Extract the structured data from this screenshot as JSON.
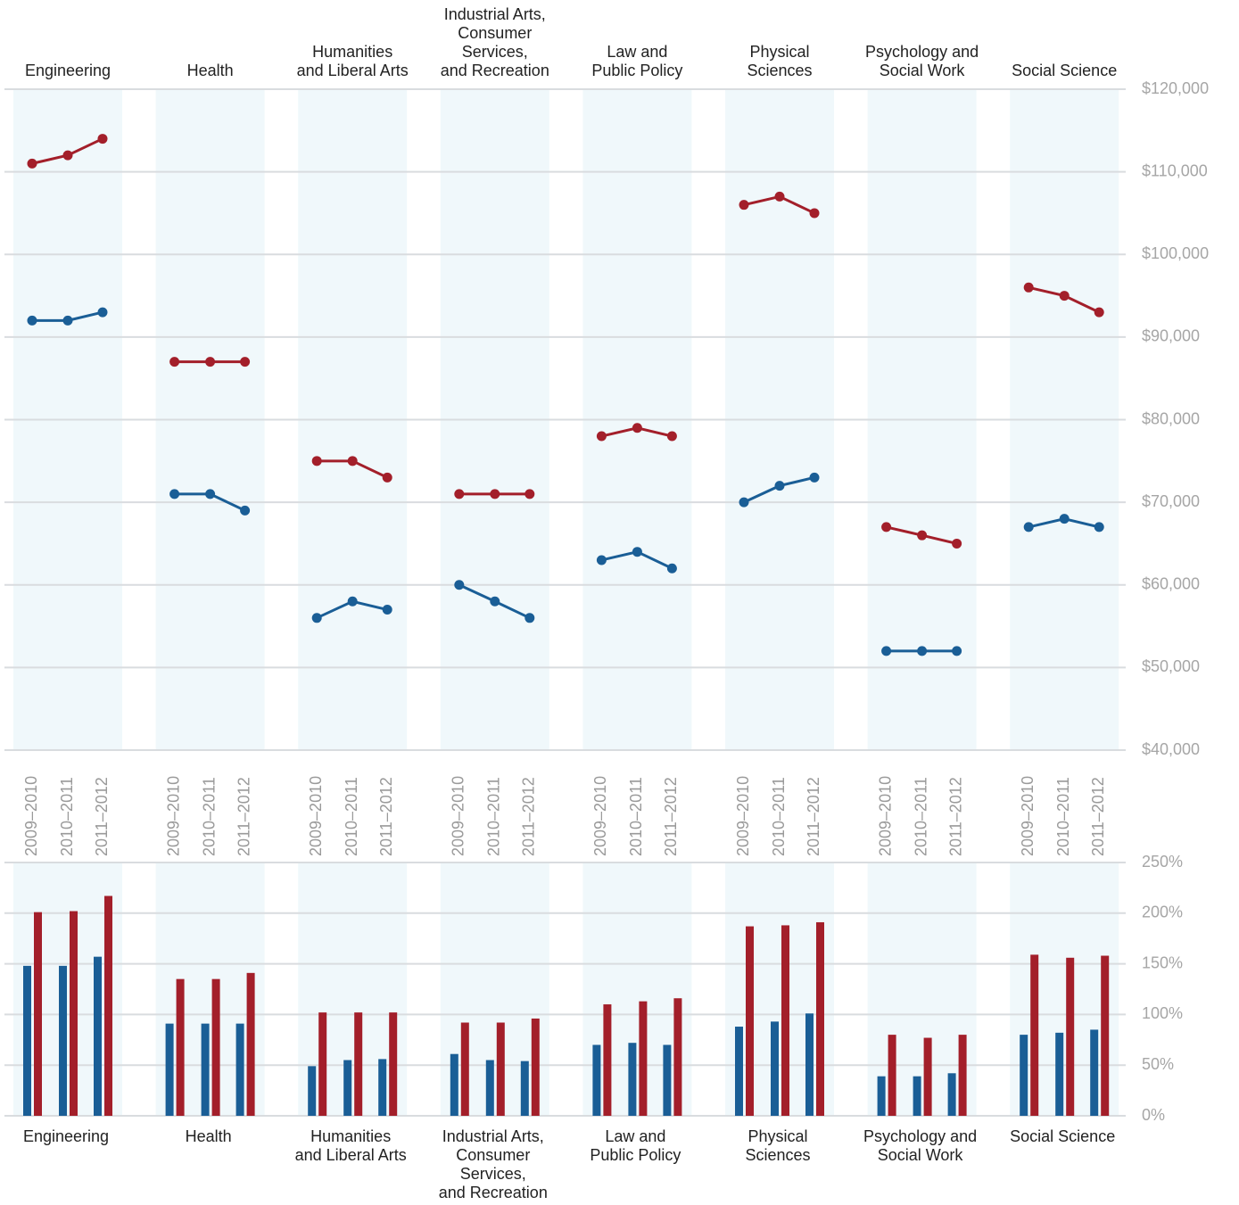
{
  "chart_data": [
    {
      "type": "line",
      "x": [
        "2009–2010",
        "2010–2011",
        "2011–2012"
      ],
      "ylim": [
        40000,
        120000
      ],
      "yticks": [
        {
          "value": 40000,
          "label": "$40,000"
        },
        {
          "value": 50000,
          "label": "$50,000"
        },
        {
          "value": 60000,
          "label": "$60,000"
        },
        {
          "value": 70000,
          "label": "$70,000"
        },
        {
          "value": 80000,
          "label": "$80,000"
        },
        {
          "value": 90000,
          "label": "$90,000"
        },
        {
          "value": 100000,
          "label": "$100,000"
        },
        {
          "value": 110000,
          "label": "$110,000"
        },
        {
          "value": 120000,
          "label": "$120,000"
        }
      ],
      "grid": true,
      "panels": [
        {
          "title": "Engineering",
          "series": [
            {
              "color": "#a31f2a",
              "values": [
                111000,
                112000,
                114000
              ]
            },
            {
              "color": "#1a5e96",
              "values": [
                92000,
                92000,
                93000
              ]
            }
          ]
        },
        {
          "title": "Health",
          "series": [
            {
              "color": "#a31f2a",
              "values": [
                87000,
                87000,
                87000
              ]
            },
            {
              "color": "#1a5e96",
              "values": [
                71000,
                71000,
                69000
              ]
            }
          ]
        },
        {
          "title": "Humanities\nand Liberal Arts",
          "series": [
            {
              "color": "#a31f2a",
              "values": [
                75000,
                75000,
                73000
              ]
            },
            {
              "color": "#1a5e96",
              "values": [
                56000,
                58000,
                57000
              ]
            }
          ]
        },
        {
          "title": "Industrial Arts,\nConsumer\nServices,\nand Recreation",
          "series": [
            {
              "color": "#a31f2a",
              "values": [
                71000,
                71000,
                71000
              ]
            },
            {
              "color": "#1a5e96",
              "values": [
                60000,
                58000,
                56000
              ]
            }
          ]
        },
        {
          "title": "Law and\nPublic Policy",
          "series": [
            {
              "color": "#a31f2a",
              "values": [
                78000,
                79000,
                78000
              ]
            },
            {
              "color": "#1a5e96",
              "values": [
                63000,
                64000,
                62000
              ]
            }
          ]
        },
        {
          "title": "Physical\nSciences",
          "series": [
            {
              "color": "#a31f2a",
              "values": [
                106000,
                107000,
                105000
              ]
            },
            {
              "color": "#1a5e96",
              "values": [
                70000,
                72000,
                73000
              ]
            }
          ]
        },
        {
          "title": "Psychology and\nSocial Work",
          "series": [
            {
              "color": "#a31f2a",
              "values": [
                67000,
                66000,
                65000
              ]
            },
            {
              "color": "#1a5e96",
              "values": [
                52000,
                52000,
                52000
              ]
            }
          ]
        },
        {
          "title": "Social Science",
          "series": [
            {
              "color": "#a31f2a",
              "values": [
                96000,
                95000,
                93000
              ]
            },
            {
              "color": "#1a5e96",
              "values": [
                67000,
                68000,
                67000
              ]
            }
          ]
        }
      ]
    },
    {
      "type": "bar",
      "ylim": [
        0,
        250
      ],
      "yticks": [
        {
          "value": 0,
          "label": "0%"
        },
        {
          "value": 50,
          "label": "50%"
        },
        {
          "value": 100,
          "label": "100%"
        },
        {
          "value": 150,
          "label": "150%"
        },
        {
          "value": 200,
          "label": "200%"
        },
        {
          "value": 250,
          "label": "250%"
        }
      ],
      "grid": true,
      "panels": [
        {
          "title": "Engineering",
          "series": [
            {
              "color": "#1a5e96",
              "values": [
                148,
                148,
                157
              ]
            },
            {
              "color": "#a31f2a",
              "values": [
                201,
                202,
                217
              ]
            }
          ]
        },
        {
          "title": "Health",
          "series": [
            {
              "color": "#1a5e96",
              "values": [
                91,
                91,
                91
              ]
            },
            {
              "color": "#a31f2a",
              "values": [
                135,
                135,
                141
              ]
            }
          ]
        },
        {
          "title": "Humanities\nand Liberal Arts",
          "series": [
            {
              "color": "#1a5e96",
              "values": [
                49,
                55,
                56
              ]
            },
            {
              "color": "#a31f2a",
              "values": [
                102,
                102,
                102
              ]
            }
          ]
        },
        {
          "title": "Industrial Arts,\nConsumer\nServices,\nand Recreation",
          "series": [
            {
              "color": "#1a5e96",
              "values": [
                61,
                55,
                54
              ]
            },
            {
              "color": "#a31f2a",
              "values": [
                92,
                92,
                96
              ]
            }
          ]
        },
        {
          "title": "Law and\nPublic Policy",
          "series": [
            {
              "color": "#1a5e96",
              "values": [
                70,
                72,
                70
              ]
            },
            {
              "color": "#a31f2a",
              "values": [
                110,
                113,
                116
              ]
            }
          ]
        },
        {
          "title": "Physical\nSciences",
          "series": [
            {
              "color": "#1a5e96",
              "values": [
                88,
                93,
                101
              ]
            },
            {
              "color": "#a31f2a",
              "values": [
                187,
                188,
                191
              ]
            }
          ]
        },
        {
          "title": "Psychology and\nSocial Work",
          "series": [
            {
              "color": "#1a5e96",
              "values": [
                39,
                39,
                42
              ]
            },
            {
              "color": "#a31f2a",
              "values": [
                80,
                77,
                80
              ]
            }
          ]
        },
        {
          "title": "Social Science",
          "series": [
            {
              "color": "#1a5e96",
              "values": [
                80,
                82,
                85
              ]
            },
            {
              "color": "#a31f2a",
              "values": [
                159,
                156,
                158
              ]
            }
          ]
        }
      ]
    }
  ]
}
